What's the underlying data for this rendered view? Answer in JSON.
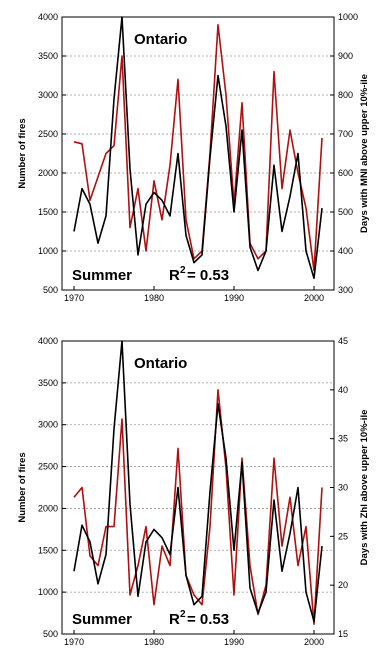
{
  "colors": {
    "fires": "#000000",
    "index": "#b01010",
    "grid": "#999999"
  },
  "chart_data": [
    {
      "type": "line",
      "region_label": "Ontario",
      "season_label": "Summer",
      "r2_label": "R",
      "r2_sup": "2",
      "r2_value": "= 0.53",
      "ylabel": "Number of fires",
      "y2label": "Days with MNI above upper 10%-ile",
      "xlim": [
        1968.5,
        2002.5
      ],
      "ylim": [
        500,
        4000
      ],
      "y2lim": [
        300,
        1000
      ],
      "xticks": [
        1970,
        1980,
        1990,
        2000
      ],
      "yticks": [
        500,
        1000,
        1500,
        2000,
        2500,
        3000,
        3500,
        4000
      ],
      "y2ticks": [
        300,
        400,
        500,
        600,
        700,
        800,
        900,
        1000
      ],
      "grid": true,
      "x": [
        1970,
        1971,
        1972,
        1973,
        1974,
        1975,
        1976,
        1977,
        1978,
        1979,
        1980,
        1981,
        1982,
        1983,
        1984,
        1985,
        1986,
        1987,
        1988,
        1989,
        1990,
        1991,
        1992,
        1993,
        1994,
        1995,
        1996,
        1997,
        1998,
        1999,
        2000,
        2001
      ],
      "series": [
        {
          "name": "Number of fires",
          "axis": "left",
          "values": [
            1250,
            1800,
            1600,
            1100,
            1450,
            2950,
            4000,
            2050,
            950,
            1600,
            1750,
            1650,
            1450,
            2250,
            1200,
            850,
            950,
            2200,
            3250,
            2600,
            1500,
            2550,
            1050,
            750,
            1000,
            2100,
            1250,
            1700,
            2250,
            1000,
            650,
            1550
          ]
        },
        {
          "name": "Days with MNI above upper 10%-ile",
          "axis": "right",
          "values": [
            680,
            675,
            530,
            590,
            650,
            670,
            900,
            460,
            560,
            400,
            580,
            480,
            620,
            840,
            480,
            380,
            400,
            650,
            980,
            800,
            520,
            780,
            420,
            380,
            400,
            860,
            560,
            710,
            600,
            510,
            350,
            690
          ]
        }
      ]
    },
    {
      "type": "line",
      "region_label": "Ontario",
      "season_label": "Summer",
      "r2_label": "R",
      "r2_sup": "2",
      "r2_value": "= 0.53",
      "ylabel": "Number of fires",
      "y2label": "Days with Zhl above upper 10%-ile",
      "xlim": [
        1968.5,
        2002.5
      ],
      "ylim": [
        500,
        4000
      ],
      "y2lim": [
        15,
        45
      ],
      "xticks": [
        1970,
        1980,
        1990,
        2000
      ],
      "yticks": [
        500,
        1000,
        1500,
        2000,
        2500,
        3000,
        3500,
        4000
      ],
      "y2ticks": [
        15,
        20,
        25,
        30,
        35,
        40,
        45
      ],
      "grid": true,
      "x": [
        1970,
        1971,
        1972,
        1973,
        1974,
        1975,
        1976,
        1977,
        1978,
        1979,
        1980,
        1981,
        1982,
        1983,
        1984,
        1985,
        1986,
        1987,
        1988,
        1989,
        1990,
        1991,
        1992,
        1993,
        1994,
        1995,
        1996,
        1997,
        1998,
        1999,
        2000,
        2001
      ],
      "series": [
        {
          "name": "Number of fires",
          "axis": "left",
          "values": [
            1250,
            1800,
            1600,
            1100,
            1450,
            2950,
            4000,
            2050,
            950,
            1600,
            1750,
            1650,
            1450,
            2250,
            1200,
            850,
            950,
            2200,
            3250,
            2600,
            1500,
            2550,
            1050,
            750,
            1000,
            2100,
            1250,
            1700,
            2250,
            1000,
            650,
            1550
          ]
        },
        {
          "name": "Days with Zhl above upper 10%-ile",
          "axis": "right",
          "values": [
            29,
            30,
            23,
            22,
            26,
            26,
            37,
            19,
            22,
            26,
            18,
            24,
            22,
            34,
            21,
            19,
            18,
            26,
            40,
            32,
            19,
            33,
            22,
            17,
            20,
            33,
            24,
            29,
            22,
            26,
            16,
            30
          ]
        }
      ]
    }
  ]
}
